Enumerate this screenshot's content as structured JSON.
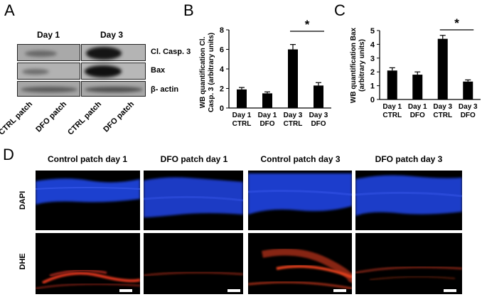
{
  "panels": {
    "a": "A",
    "b": "B",
    "c": "C",
    "d": "D"
  },
  "western_blot": {
    "day_labels": [
      "Day 1",
      "Day 3"
    ],
    "row_labels": [
      "Cl. Casp. 3",
      "Bax",
      "β- actin"
    ],
    "lane_labels": [
      "CTRL patch",
      "DFO patch",
      "CTRL patch",
      "DFO patch"
    ]
  },
  "charts": {
    "b": {
      "ylabel_line1": "WB quantification Cl.",
      "ylabel_line2": "Casp. 3 (arbitrary units)",
      "significance": "*"
    },
    "c": {
      "ylabel_line1": "WB quantification Bax",
      "ylabel_line2": "(arbitrary units)",
      "significance": "*"
    }
  },
  "chart_data": [
    {
      "type": "bar",
      "categories": [
        "Day 1 CTRL",
        "Day 1 DFO",
        "Day 3 CTRL",
        "Day 3 DFO"
      ],
      "category_lines": [
        [
          "Day 1",
          "CTRL"
        ],
        [
          "Day 1",
          "DFO"
        ],
        [
          "Day 3",
          "CTRL"
        ],
        [
          "Day 3",
          "DFO"
        ]
      ],
      "values": [
        1.9,
        1.5,
        6.0,
        2.3
      ],
      "errors": [
        0.2,
        0.15,
        0.5,
        0.3
      ],
      "ylabel": "WB quantification Cl. Casp. 3 (arbitrary units)",
      "ylim": [
        0,
        8
      ],
      "yticks": [
        0,
        2,
        4,
        6,
        8
      ],
      "significance": {
        "between": [
          2,
          3
        ],
        "label": "*"
      },
      "bar_color": "#000000"
    },
    {
      "type": "bar",
      "categories": [
        "Day 1 CTRL",
        "Day 1 DFO",
        "Day 3 CTRL",
        "Day 3 DFO"
      ],
      "category_lines": [
        [
          "Day 1",
          "CTRL"
        ],
        [
          "Day 1",
          "DFO"
        ],
        [
          "Day 3",
          "CTRL"
        ],
        [
          "Day 3",
          "DFO"
        ]
      ],
      "values": [
        2.1,
        1.8,
        4.4,
        1.3
      ],
      "errors": [
        0.2,
        0.2,
        0.25,
        0.12
      ],
      "ylabel": "WB quantification Bax (arbitrary units)",
      "ylim": [
        0,
        5
      ],
      "yticks": [
        0,
        1,
        2,
        3,
        4,
        5
      ],
      "significance": {
        "between": [
          2,
          3
        ],
        "label": "*"
      },
      "bar_color": "#000000"
    }
  ],
  "microscopy": {
    "columns": [
      "Control patch day 1",
      "DFO patch day 1",
      "Control patch day 3",
      "DFO patch day 3"
    ],
    "rows": [
      "DAPI",
      "DHE"
    ],
    "colors": {
      "dapi": "#1f3fcf",
      "dhe": "#d8361a",
      "background": "#000000"
    }
  }
}
